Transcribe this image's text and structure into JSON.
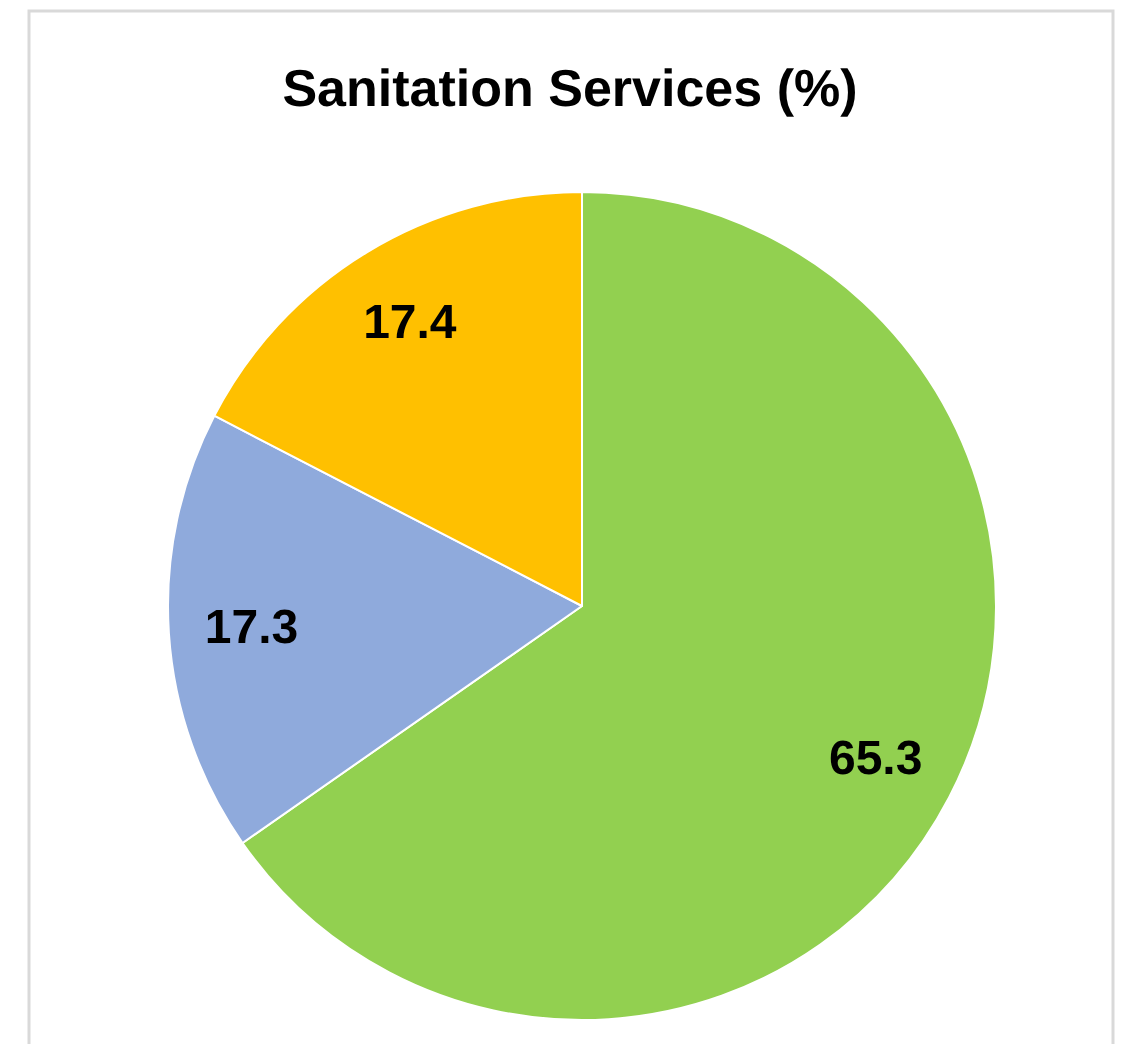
{
  "chart_data": {
    "type": "pie",
    "title": "Sanitation Services (%)",
    "categories": [
      null,
      null,
      null
    ],
    "values": [
      65.3,
      17.3,
      17.4
    ],
    "colors": [
      "#92d050",
      "#8faadc",
      "#ffc000"
    ],
    "data_labels": true
  }
}
